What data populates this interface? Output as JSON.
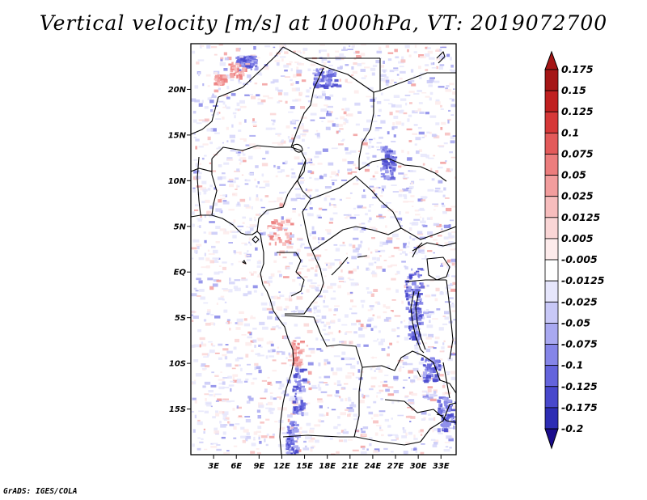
{
  "title": "Vertical velocity [m/s] at 1000hPa, VT: 2019072700",
  "credit": "GrADS: IGES/COLA",
  "map": {
    "lon_range": [
      0,
      35
    ],
    "lat_range": [
      -20,
      25
    ],
    "lat_ticks": [
      {
        "label": "20N",
        "value": 20
      },
      {
        "label": "15N",
        "value": 15
      },
      {
        "label": "10N",
        "value": 10
      },
      {
        "label": "5N",
        "value": 5
      },
      {
        "label": "EQ",
        "value": 0
      },
      {
        "label": "5S",
        "value": -5
      },
      {
        "label": "10S",
        "value": -10
      },
      {
        "label": "15S",
        "value": -15
      }
    ],
    "lon_ticks": [
      {
        "label": "3E",
        "value": 3
      },
      {
        "label": "6E",
        "value": 6
      },
      {
        "label": "9E",
        "value": 9
      },
      {
        "label": "12E",
        "value": 12
      },
      {
        "label": "15E",
        "value": 15
      },
      {
        "label": "18E",
        "value": 18
      },
      {
        "label": "21E",
        "value": 21
      },
      {
        "label": "24E",
        "value": 24
      },
      {
        "label": "27E",
        "value": 27
      },
      {
        "label": "30E",
        "value": 30
      },
      {
        "label": "33E",
        "value": 33
      }
    ]
  },
  "colorbar": {
    "levels": [
      {
        "label": "0.175",
        "color": "#a51616"
      },
      {
        "label": "0.15",
        "color": "#c02020"
      },
      {
        "label": "0.125",
        "color": "#d63838"
      },
      {
        "label": "0.1",
        "color": "#e35a5a"
      },
      {
        "label": "0.075",
        "color": "#ec7d7d"
      },
      {
        "label": "0.05",
        "color": "#f29d9d"
      },
      {
        "label": "0.025",
        "color": "#f7bdbd"
      },
      {
        "label": "0.0125",
        "color": "#fad6d6"
      },
      {
        "label": "0.005",
        "color": "#fdebeb"
      },
      {
        "label": "-0.005",
        "color": "#ffffff"
      },
      {
        "label": "-0.0125",
        "color": "#e6e6fc"
      },
      {
        "label": "-0.025",
        "color": "#c8c8f7"
      },
      {
        "label": "-0.05",
        "color": "#a9a9f1"
      },
      {
        "label": "-0.075",
        "color": "#8585e8"
      },
      {
        "label": "-0.1",
        "color": "#6464dc"
      },
      {
        "label": "-0.125",
        "color": "#4848cc"
      },
      {
        "label": "-0.175",
        "color": "#2d2db4"
      },
      {
        "label": "-0.2",
        "color": "#1a1a96"
      }
    ],
    "top_color": "#a51616",
    "bottom_color": "#1a0c8c"
  }
}
